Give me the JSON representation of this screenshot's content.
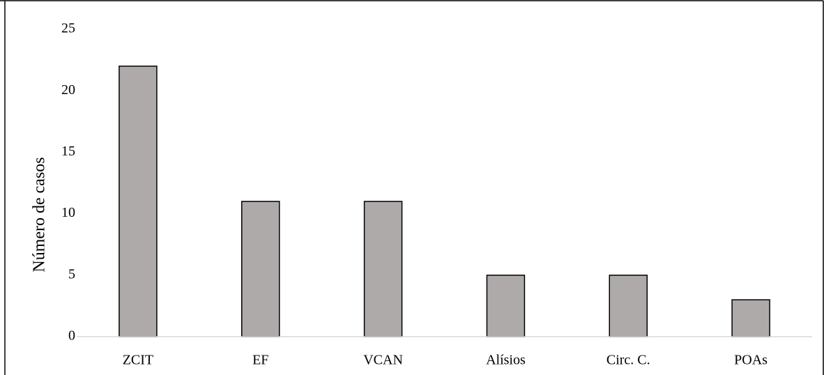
{
  "chart_data": {
    "type": "bar",
    "title": "",
    "xlabel": "",
    "ylabel": "Número de casos",
    "categories": [
      "ZCIT",
      "EF",
      "VCAN",
      "Alísios",
      "Circ. C.",
      "POAs"
    ],
    "values": [
      22,
      11,
      11,
      5,
      5,
      3
    ],
    "ylim": [
      0,
      25
    ],
    "yticks": [
      0,
      5,
      10,
      15,
      20,
      25
    ],
    "grid": false,
    "legend": "none",
    "colors": {
      "bar_fill": "#aeaaaa",
      "bar_stroke": "#000000",
      "axis": "#d9d9d9",
      "frame": "#000000"
    }
  }
}
